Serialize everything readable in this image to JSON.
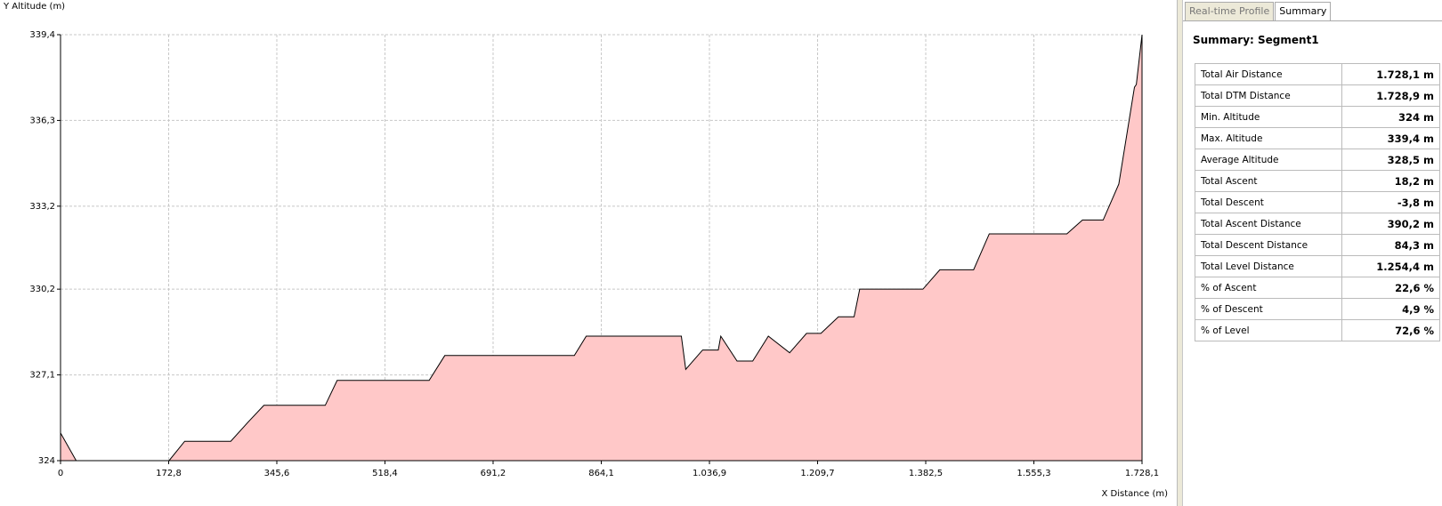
{
  "chart_data": {
    "type": "area",
    "ylabel": "Y Altitude (m)",
    "xlabel": "X Distance (m)",
    "x": [
      0,
      25,
      173.4,
      198.4,
      272,
      300,
      325,
      423,
      442,
      589,
      614,
      821,
      840,
      992,
      999,
      1026,
      1051,
      1055,
      1081,
      1106,
      1131,
      1165,
      1192,
      1215,
      1243,
      1268,
      1277,
      1378,
      1405,
      1459,
      1484,
      1608,
      1633,
      1666,
      1691,
      1716,
      1719,
      1728.1
    ],
    "values": [
      325.0,
      324,
      324,
      324.7,
      324.7,
      325.4,
      326.0,
      326.0,
      326.9,
      326.9,
      327.8,
      327.8,
      328.5,
      328.5,
      327.3,
      328.0,
      328.0,
      328.5,
      327.6,
      327.6,
      328.5,
      327.9,
      328.6,
      328.6,
      329.2,
      329.2,
      330.2,
      330.2,
      330.9,
      330.9,
      332.2,
      332.2,
      332.7,
      332.7,
      334.0,
      337.5,
      337.6,
      339.4
    ],
    "color": "#ffc8c8",
    "line_color": "#000000",
    "xlim": [
      0,
      1728.1
    ],
    "ylim": [
      324,
      339.4
    ],
    "xticks": [
      0,
      {
        "value": 172.8,
        "label": "172,8"
      },
      {
        "value": 345.6,
        "label": "345,6"
      },
      {
        "value": 518.4,
        "label": "518,4"
      },
      {
        "value": 691.2,
        "label": "691,2"
      },
      {
        "value": 864.1,
        "label": "864,1"
      },
      {
        "value": 1036.9,
        "label": "1.036,9"
      },
      {
        "value": 1209.7,
        "label": "1.209,7"
      },
      {
        "value": 1382.5,
        "label": "1.382,5"
      },
      {
        "value": 1555.3,
        "label": "1.555,3"
      },
      {
        "value": 1728.1,
        "label": "1.728,1"
      }
    ],
    "yticks": [
      324,
      {
        "value": 327.1,
        "label": "327,1"
      },
      {
        "value": 330.2,
        "label": "330,2"
      },
      {
        "value": 333.2,
        "label": "333,2"
      },
      {
        "value": 336.3,
        "label": "336,3"
      },
      {
        "value": 339.4,
        "label": "339,4"
      }
    ],
    "grid": true
  },
  "panel": {
    "tabs": [
      "Real-time Profile",
      "Summary"
    ],
    "active_tab": 1,
    "title": "Summary: Segment1",
    "rows": [
      [
        "Total Air Distance",
        "1.728,1 m"
      ],
      [
        "Total DTM Distance",
        "1.728,9 m"
      ],
      [
        "Min. Altitude",
        "324 m"
      ],
      [
        "Max. Altitude",
        "339,4 m"
      ],
      [
        "Average Altitude",
        "328,5 m"
      ],
      [
        "Total Ascent",
        "18,2 m"
      ],
      [
        "Total Descent",
        "-3,8 m"
      ],
      [
        "Total Ascent Distance",
        "390,2 m"
      ],
      [
        "Total Descent Distance",
        "84,3 m"
      ],
      [
        "Total Level Distance",
        "1.254,4 m"
      ],
      [
        "% of Ascent",
        "22,6 %"
      ],
      [
        "% of Descent",
        "4,9 %"
      ],
      [
        "% of Level",
        "72,6 %"
      ]
    ]
  }
}
